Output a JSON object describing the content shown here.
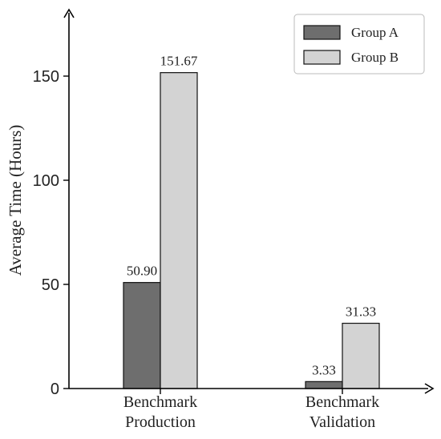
{
  "chart_data": {
    "type": "bar",
    "title": "",
    "xlabel": "",
    "ylabel": "Average Time (Hours)",
    "categories": [
      [
        "Benchmark",
        "Production"
      ],
      [
        "Benchmark",
        "Validation"
      ]
    ],
    "series": [
      {
        "name": "Group A",
        "values": [
          50.9,
          3.33
        ],
        "labels": [
          "50.90",
          "3.33"
        ],
        "color": "#6e6e6e"
      },
      {
        "name": "Group B",
        "values": [
          151.67,
          31.33
        ],
        "labels": [
          "151.67",
          "31.33"
        ],
        "color": "#d3d3d3"
      }
    ],
    "yticks": [
      0,
      50,
      100,
      150
    ],
    "ylim": [
      0,
      180
    ],
    "grid": false,
    "legend_position": "top-right"
  }
}
